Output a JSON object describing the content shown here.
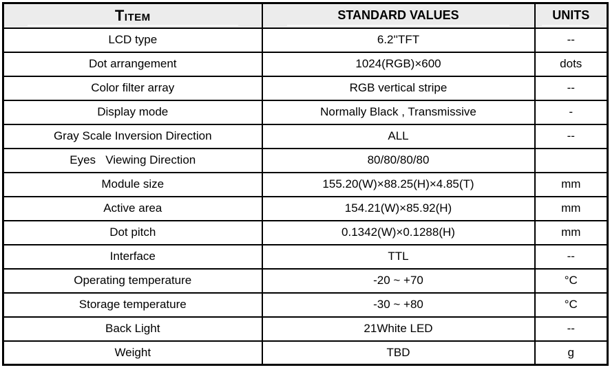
{
  "colors": {
    "header_bg": "#ececec",
    "border": "#000000",
    "text": "#000000",
    "row_bg": "#ffffff"
  },
  "header": {
    "item_initial": "T",
    "item_rest": "ITEM",
    "standard_values": "STANDARD VALUES",
    "units": "UNITS"
  },
  "rows": [
    {
      "item": "LCD type",
      "value": "6.2''TFT",
      "unit": "--"
    },
    {
      "item": "Dot arrangement",
      "value": "1024(RGB)×600",
      "unit": "dots"
    },
    {
      "item": "Color filter array",
      "value": "RGB vertical stripe",
      "unit": "--"
    },
    {
      "item": "Display mode",
      "value": "Normally Black , Transmissive",
      "unit": "-"
    },
    {
      "item": "Gray Scale Inversion Direction",
      "value": "ALL",
      "unit": "--"
    },
    {
      "item": "Eyes   Viewing Direction",
      "value": "80/80/80/80",
      "unit": ""
    },
    {
      "item": "Module size",
      "value": "155.20(W)×88.25(H)×4.85(T)",
      "unit": "mm"
    },
    {
      "item": "Active area",
      "value": "154.21(W)×85.92(H)",
      "unit": "mm"
    },
    {
      "item": "Dot pitch",
      "value": "0.1342(W)×0.1288(H)",
      "unit": "mm"
    },
    {
      "item": "Interface",
      "value": "TTL",
      "unit": "--"
    },
    {
      "item": "Operating temperature",
      "value": "-20 ~ +70",
      "unit": "°C"
    },
    {
      "item": "Storage temperature",
      "value": "-30 ~ +80",
      "unit": "°C"
    },
    {
      "item": "Back Light",
      "value": "21White LED",
      "unit": "--"
    },
    {
      "item": "Weight",
      "value": "TBD",
      "unit": "g"
    }
  ]
}
